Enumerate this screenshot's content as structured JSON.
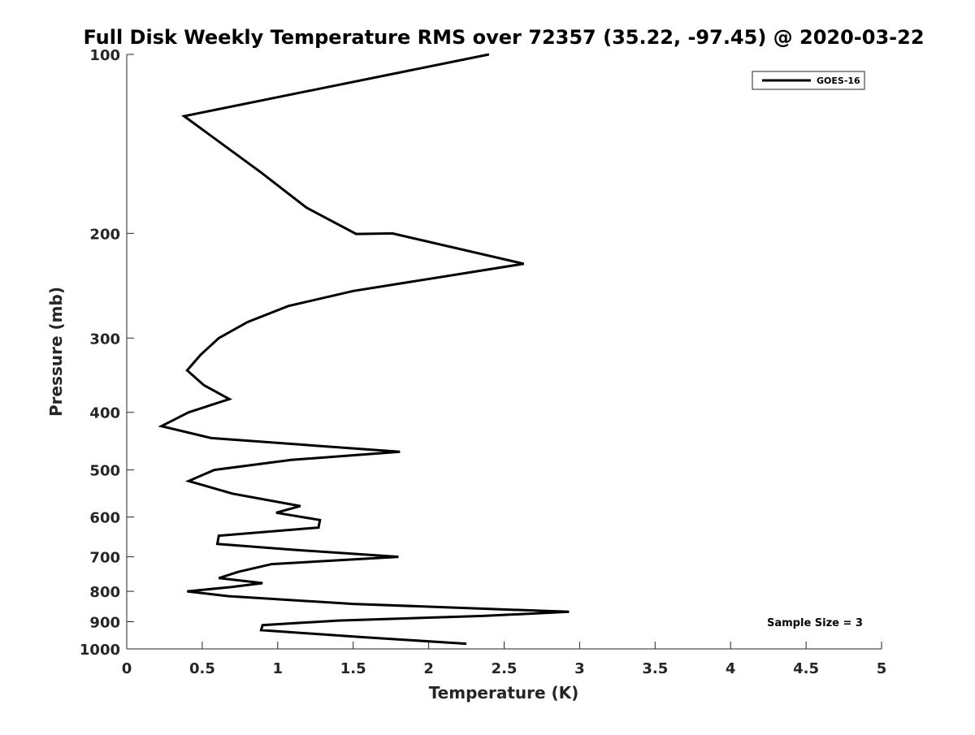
{
  "chart_data": {
    "type": "line",
    "title": "Full Disk Weekly Temperature RMS over 72357 (35.22, -97.45) @ 2020-03-22",
    "xlabel": "Temperature (K)",
    "ylabel": "Pressure (mb)",
    "xlim": [
      0,
      5
    ],
    "ylim": [
      100,
      1000
    ],
    "y_scale": "log",
    "y_reversed": true,
    "grid": false,
    "x_ticks": [
      0,
      0.5,
      1,
      1.5,
      2,
      2.5,
      3,
      3.5,
      4,
      4.5,
      5
    ],
    "x_tick_labels": [
      "0",
      "0.5",
      "1",
      "1.5",
      "2",
      "2.5",
      "3",
      "3.5",
      "4",
      "4.5",
      "5"
    ],
    "y_ticks": [
      100,
      200,
      300,
      400,
      500,
      600,
      700,
      800,
      900,
      1000
    ],
    "y_tick_labels": [
      "100",
      "200",
      "300",
      "400",
      "500",
      "600",
      "700",
      "800",
      "900",
      "1000"
    ],
    "legend": {
      "position": "top-right",
      "entries": [
        "GOES-16"
      ]
    },
    "annotation": "Sample Size = 3",
    "series": [
      {
        "name": "GOES-16",
        "color": "#000000",
        "points": [
          [
            2.4,
            100
          ],
          [
            0.38,
            127
          ],
          [
            0.89,
            158
          ],
          [
            1.19,
            181
          ],
          [
            1.52,
            200.5
          ],
          [
            1.76,
            200
          ],
          [
            2.63,
            225
          ],
          [
            1.5,
            250
          ],
          [
            1.07,
            265
          ],
          [
            0.8,
            282
          ],
          [
            0.61,
            300
          ],
          [
            0.49,
            320
          ],
          [
            0.4,
            340
          ],
          [
            0.51,
            360
          ],
          [
            0.68,
            380
          ],
          [
            0.41,
            400
          ],
          [
            0.23,
            422
          ],
          [
            0.56,
            442
          ],
          [
            1.81,
            466
          ],
          [
            1.09,
            481
          ],
          [
            0.58,
            500
          ],
          [
            0.41,
            522
          ],
          [
            0.7,
            548
          ],
          [
            1.15,
            575
          ],
          [
            0.99,
            590
          ],
          [
            1.28,
            607
          ],
          [
            1.27,
            625
          ],
          [
            0.61,
            645
          ],
          [
            0.6,
            666
          ],
          [
            1.1,
            681
          ],
          [
            1.8,
            700
          ],
          [
            0.96,
            720
          ],
          [
            0.74,
            742
          ],
          [
            0.61,
            760
          ],
          [
            0.9,
            775
          ],
          [
            0.69,
            787
          ],
          [
            0.4,
            800
          ],
          [
            0.67,
            815
          ],
          [
            1.5,
            840
          ],
          [
            2.93,
            866
          ],
          [
            2.36,
            880
          ],
          [
            1.4,
            896
          ],
          [
            0.9,
            912
          ],
          [
            0.89,
            930
          ],
          [
            1.55,
            955
          ],
          [
            2.25,
            980
          ]
        ]
      }
    ]
  }
}
